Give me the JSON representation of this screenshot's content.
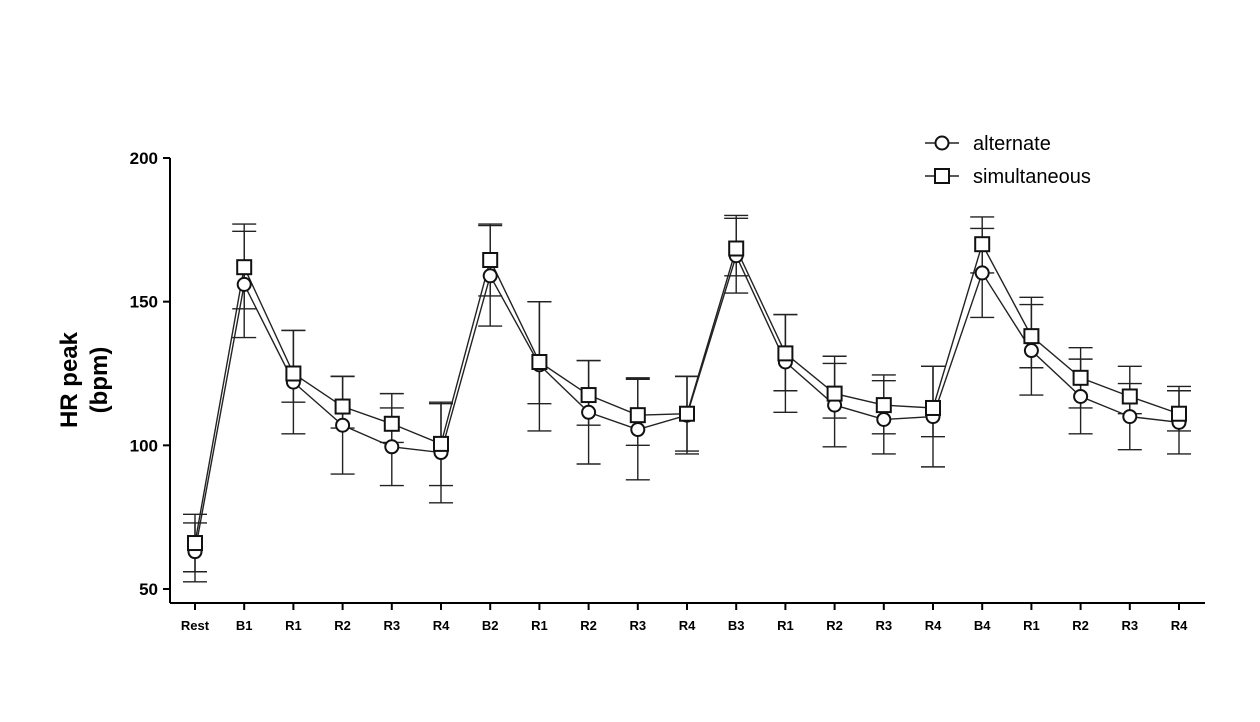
{
  "chart_data": {
    "type": "line",
    "title": "",
    "ylabel": "HR peak\n(bpm)",
    "xlabel": "",
    "ylim": [
      50,
      200
    ],
    "yticks": [
      50,
      100,
      150,
      200
    ],
    "grid": false,
    "legend_placement": "top-right",
    "categories": [
      "Rest",
      "B1",
      "R1",
      "R2",
      "R3",
      "R4",
      "B2",
      "R1",
      "R2",
      "R3",
      "R4",
      "B3",
      "R1",
      "R2",
      "R3",
      "R4",
      "B4",
      "R1",
      "R2",
      "R3",
      "R4"
    ],
    "series": [
      {
        "name": "alternate",
        "marker": "circle",
        "values": [
          63,
          156,
          122,
          107,
          99.5,
          97.5,
          159,
          128,
          111.5,
          105.5,
          110.5,
          166,
          129,
          114,
          109,
          110,
          160,
          133,
          117,
          110,
          108
        ],
        "err_lower": [
          10.5,
          18.5,
          18,
          17,
          13.5,
          17.5,
          17.5,
          23,
          18,
          17.5,
          12.5,
          13,
          17.5,
          14.5,
          12,
          17.5,
          15.5,
          15.5,
          13,
          11.5,
          11
        ],
        "err_upper": [
          10,
          18.5,
          18,
          17,
          13.5,
          17,
          17.5,
          22,
          18,
          17.5,
          13.5,
          13,
          16.5,
          14.5,
          13.5,
          17.5,
          15.5,
          16,
          13,
          11.5,
          11
        ]
      },
      {
        "name": "simultaneous",
        "marker": "square",
        "values": [
          66,
          162,
          125,
          113.5,
          107.5,
          100.5,
          164.5,
          129,
          117.5,
          110.5,
          111,
          168.5,
          132,
          118,
          114,
          113,
          170,
          138,
          123.5,
          117,
          111
        ],
        "err_lower": [
          10,
          14.5,
          10,
          7.5,
          6.5,
          14.5,
          12.5,
          14.5,
          10.5,
          10.5,
          14,
          9.5,
          13,
          8.5,
          10,
          10,
          10,
          11,
          10.5,
          6,
          6
        ],
        "err_upper": [
          10,
          15,
          15,
          10.5,
          10.5,
          14.5,
          12.5,
          21,
          12,
          13,
          13,
          11.5,
          13.5,
          13,
          10.5,
          14.5,
          9.5,
          13.5,
          10.5,
          10.5,
          9.5
        ]
      }
    ]
  }
}
